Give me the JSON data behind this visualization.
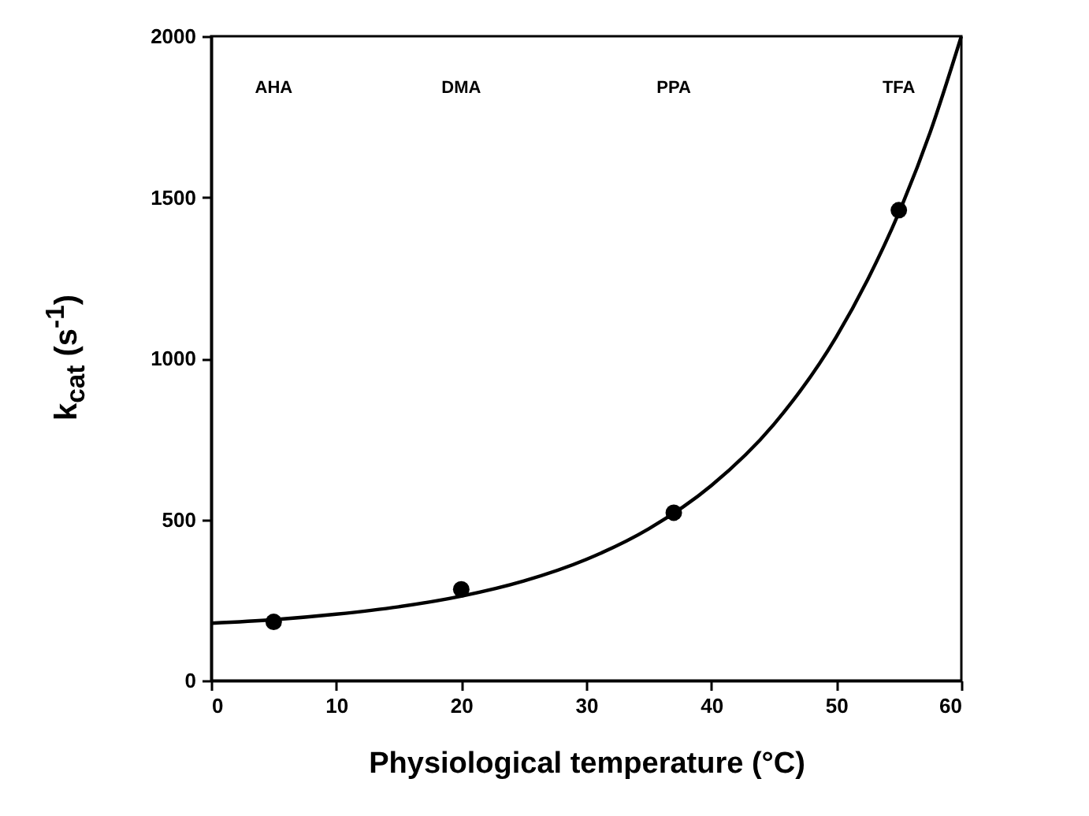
{
  "chart_data": {
    "type": "scatter",
    "xlabel": "Physiological temperature (°C)",
    "ylabel": "k$_{cat}$ (s$^{-1}$)",
    "xlim": [
      0,
      60
    ],
    "xticks": [
      0,
      10,
      20,
      30,
      40,
      50,
      60
    ],
    "ylim": [
      0,
      2000
    ],
    "yticks": [
      0,
      500,
      1000,
      1500,
      2000
    ],
    "marker": "circle",
    "series": [
      {
        "color": "#000000",
        "x": [
          5,
          20,
          37,
          55
        ],
        "values": [
          182,
          283,
          521,
          1460
        ]
      },
      {
        "type": "line",
        "color": "#000000",
        "line_style": "solid",
        "marker": "none",
        "x": [
          0,
          5,
          10,
          15,
          20,
          25,
          30,
          35,
          40,
          45,
          50,
          52.5,
          55,
          57.5,
          60
        ],
        "values": [
          178,
          189,
          206,
          229,
          262,
          309,
          376,
          471,
          605,
          795,
          1067,
          1244,
          1452,
          1701,
          2000
        ]
      }
    ],
    "annotations": [
      "AHA",
      "DMA",
      "PPA",
      "TFA"
    ]
  }
}
